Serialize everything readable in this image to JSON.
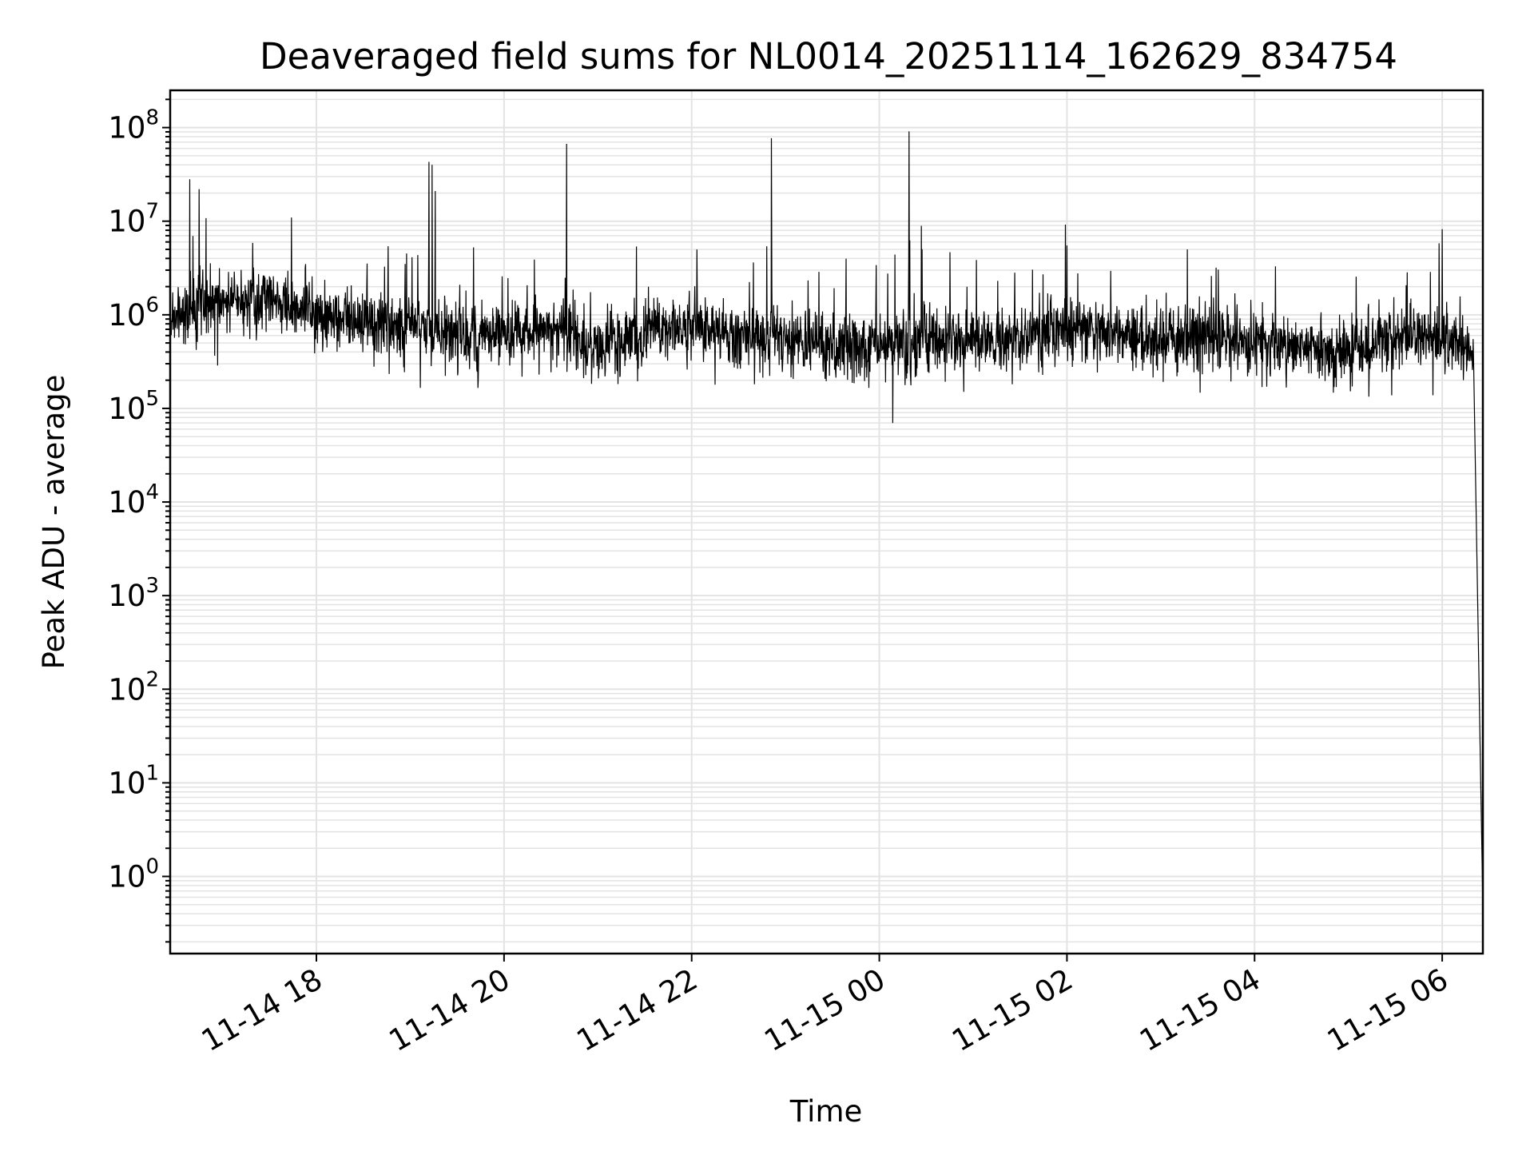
{
  "chart_data": {
    "type": "line",
    "title": "Deaveraged field sums for NL0014_20251114_162629_834754",
    "xlabel": "Time",
    "ylabel": "Peak ADU - average",
    "yscale": "log",
    "ylim": [
      0.15,
      250000000
    ],
    "xlim": [
      "2025-11-14T16:26:29",
      "2025-11-15T06:26:00"
    ],
    "grid": true,
    "x_ticks": [
      "11-14 18",
      "11-14 20",
      "11-14 22",
      "11-15 00",
      "11-15 02",
      "11-15 04",
      "11-15 06"
    ],
    "y_ticks": [
      {
        "base": "10",
        "exp": "0"
      },
      {
        "base": "10",
        "exp": "1"
      },
      {
        "base": "10",
        "exp": "2"
      },
      {
        "base": "10",
        "exp": "3"
      },
      {
        "base": "10",
        "exp": "4"
      },
      {
        "base": "10",
        "exp": "5"
      },
      {
        "base": "10",
        "exp": "6"
      },
      {
        "base": "10",
        "exp": "7"
      },
      {
        "base": "10",
        "exp": "8"
      }
    ],
    "series": [
      {
        "color": "#000000",
        "baseline": [
          [
            "2025-11-14T16:26:29",
            900000
          ],
          [
            "2025-11-14T17:00:00",
            1500000
          ],
          [
            "2025-11-14T17:30:00",
            1400000
          ],
          [
            "2025-11-14T18:00:00",
            1100000
          ],
          [
            "2025-11-14T18:30:00",
            850000
          ],
          [
            "2025-11-14T19:00:00",
            750000
          ],
          [
            "2025-11-14T19:30:00",
            650000
          ],
          [
            "2025-11-14T20:00:00",
            600000
          ],
          [
            "2025-11-14T20:30:00",
            700000
          ],
          [
            "2025-11-14T21:00:00",
            420000
          ],
          [
            "2025-11-14T21:30:00",
            650000
          ],
          [
            "2025-11-14T22:00:00",
            700000
          ],
          [
            "2025-11-14T22:30:00",
            600000
          ],
          [
            "2025-11-14T23:00:00",
            550000
          ],
          [
            "2025-11-14T23:30:00",
            450000
          ],
          [
            "2025-11-15T00:00:00",
            450000
          ],
          [
            "2025-11-15T00:30:00",
            550000
          ],
          [
            "2025-11-15T01:00:00",
            550000
          ],
          [
            "2025-11-15T01:30:00",
            600000
          ],
          [
            "2025-11-15T02:00:00",
            700000
          ],
          [
            "2025-11-15T02:30:00",
            600000
          ],
          [
            "2025-11-15T03:00:00",
            550000
          ],
          [
            "2025-11-15T03:30:00",
            550000
          ],
          [
            "2025-11-15T04:00:00",
            500000
          ],
          [
            "2025-11-15T04:30:00",
            450000
          ],
          [
            "2025-11-15T05:00:00",
            450000
          ],
          [
            "2025-11-15T05:30:00",
            550000
          ],
          [
            "2025-11-15T06:00:00",
            600000
          ],
          [
            "2025-11-15T06:20:00",
            400000
          ]
        ],
        "spikes": [
          [
            "2025-11-14T16:39:00",
            28000000
          ],
          [
            "2025-11-14T16:45:00",
            22000000
          ],
          [
            "2025-11-14T19:12:00",
            43000000
          ],
          [
            "2025-11-14T19:14:00",
            40000000
          ],
          [
            "2025-11-14T19:16:00",
            21000000
          ],
          [
            "2025-11-14T20:40:00",
            67000000
          ],
          [
            "2025-11-14T22:48:00",
            5400000
          ],
          [
            "2025-11-14T22:51:00",
            77000000
          ],
          [
            "2025-11-14T23:58:00",
            3400000
          ],
          [
            "2025-11-15T00:10:00",
            4400000
          ],
          [
            "2025-11-15T00:19:00",
            91000000
          ],
          [
            "2025-11-15T01:59:00",
            9200000
          ],
          [
            "2025-11-15T02:00:00",
            5500000
          ],
          [
            "2025-11-15T03:17:00",
            5000000
          ],
          [
            "2025-11-15T05:58:00",
            5800000
          ],
          [
            "2025-11-15T06:00:00",
            8200000
          ]
        ],
        "end_drop": [
          [
            "2025-11-15T06:26:00",
            0.45
          ]
        ]
      }
    ]
  }
}
